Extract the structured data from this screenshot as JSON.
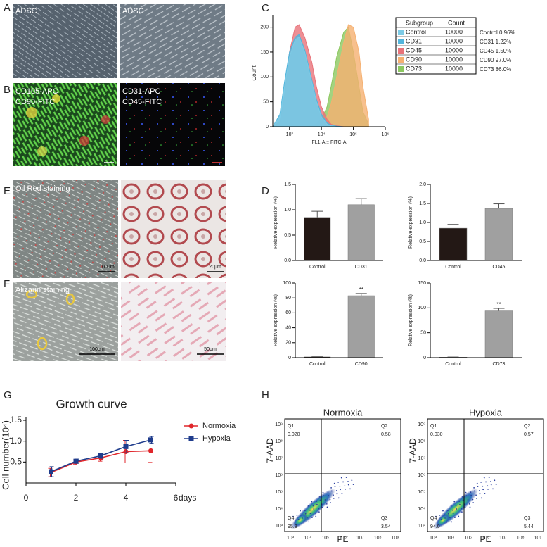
{
  "panel_labels": [
    "A",
    "B",
    "C",
    "D",
    "E",
    "F",
    "G",
    "H"
  ],
  "photos": [
    {
      "labels": [
        "ADSC"
      ]
    },
    {
      "labels": [
        "ADSC"
      ]
    },
    {
      "labels": [
        "CD105-APC",
        "CD90-FITC"
      ]
    },
    {
      "labels": [
        "CD31-APC",
        "CD45-FITC"
      ]
    },
    {
      "labels": [
        "Oil Red staining"
      ],
      "scale": "100μm"
    },
    {
      "scale": "20μm"
    },
    {
      "labels": [
        "Alizarin staining"
      ],
      "scale": "100μm"
    },
    {
      "scale": "50μm"
    }
  ],
  "chart_data": [
    {
      "type": "area",
      "xlabel": "FL1-A :: FITC-A",
      "ylabel": "Count",
      "table_headers": [
        "Subgroup",
        "Count"
      ],
      "log_x": true,
      "x": [
        300,
        500,
        700,
        1000,
        1500,
        2000,
        3000,
        5000,
        7000,
        10000,
        15000,
        20000,
        30000,
        50000,
        70000,
        100000,
        150000,
        200000,
        300000
      ],
      "xlim": [
        300,
        1000000
      ],
      "xticks": [
        {
          "value": 1000,
          "label": "10³"
        },
        {
          "value": 10000,
          "label": "10⁴"
        },
        {
          "value": 100000,
          "label": "10⁵"
        },
        {
          "value": 1000000,
          "label": "10⁶"
        }
      ],
      "ylim": [
        0,
        215
      ],
      "yticks": [
        0,
        50,
        100,
        150,
        200
      ],
      "series": [
        {
          "name": "Control",
          "color": "#7dcbe6",
          "count": 10000,
          "note": "Control 0.96%",
          "values": [
            0,
            20,
            80,
            140,
            175,
            180,
            150,
            90,
            50,
            20,
            5,
            2,
            0,
            0,
            0,
            0,
            0,
            0,
            0
          ]
        },
        {
          "name": "CD31",
          "color": "#52b5dc",
          "count": 10000,
          "note": "CD31 1.22%",
          "values": [
            0,
            25,
            90,
            150,
            180,
            185,
            155,
            95,
            55,
            25,
            8,
            3,
            1,
            0,
            0,
            0,
            0,
            0,
            0
          ]
        },
        {
          "name": "CD45",
          "color": "#e8737a",
          "count": 10000,
          "note": "CD45 1.50%",
          "values": [
            0,
            10,
            60,
            150,
            200,
            205,
            180,
            130,
            80,
            40,
            15,
            5,
            2,
            0,
            0,
            0,
            0,
            0,
            0
          ]
        },
        {
          "name": "CD90",
          "color": "#f5b071",
          "count": 10000,
          "note": "CD90 97.0%",
          "values": [
            0,
            0,
            0,
            0,
            0,
            0,
            0,
            1,
            3,
            8,
            20,
            45,
            100,
            170,
            205,
            200,
            150,
            80,
            15
          ]
        },
        {
          "name": "CD73",
          "color": "#8cc860",
          "count": 10000,
          "note": "CD73 86.0%",
          "values": [
            0,
            0,
            0,
            0,
            0,
            0,
            0,
            2,
            5,
            15,
            40,
            80,
            140,
            190,
            200,
            150,
            80,
            30,
            5
          ]
        }
      ]
    },
    {
      "type": "bar",
      "ylabel": "Relative expression (%)",
      "categories": [
        "Control",
        "CD31"
      ],
      "values": [
        0.85,
        1.1
      ],
      "errors": [
        0.12,
        0.12
      ],
      "colors": [
        "#231815",
        "#a0a0a0"
      ],
      "ylim": [
        0,
        1.5
      ],
      "yticks": [
        {
          "value": 0,
          "label": "0.0"
        },
        0.5,
        {
          "value": 1,
          "label": "1.0"
        },
        1.5
      ]
    },
    {
      "type": "bar",
      "ylabel": "Relative expression (%)",
      "categories": [
        "Control",
        "CD45"
      ],
      "values": [
        0.85,
        1.37
      ],
      "errors": [
        0.1,
        0.12
      ],
      "colors": [
        "#231815",
        "#a0a0a0"
      ],
      "ylim": [
        0,
        2
      ],
      "yticks": [
        {
          "value": 0,
          "label": "0.0"
        },
        0.5,
        {
          "value": 1,
          "label": "1.0"
        },
        1.5,
        {
          "value": 2,
          "label": "2.0"
        }
      ]
    },
    {
      "type": "bar",
      "ylabel": "Relative expression (%)",
      "categories": [
        "Control",
        "CD90"
      ],
      "values": [
        1,
        83
      ],
      "errors": [
        0.3,
        3
      ],
      "colors": [
        "#231815",
        "#a0a0a0"
      ],
      "value_annotations": [
        null,
        "**"
      ],
      "ylim": [
        0,
        100
      ],
      "yticks": [
        0,
        20,
        40,
        60,
        80,
        100
      ]
    },
    {
      "type": "bar",
      "ylabel": "Relative expression (%)",
      "categories": [
        "Control",
        "CD73"
      ],
      "values": [
        1,
        94
      ],
      "errors": [
        0.3,
        5
      ],
      "colors": [
        "#231815",
        "#a0a0a0"
      ],
      "value_annotations": [
        null,
        "**"
      ],
      "ylim": [
        0,
        150
      ],
      "yticks": [
        0,
        50,
        100,
        150
      ]
    },
    {
      "type": "line",
      "title": "Growth curve",
      "xlabel": "days",
      "ylabel": "Cell number(10⁴)",
      "legend": "upper right",
      "x": [
        1,
        2,
        3,
        4,
        5
      ],
      "xlim": [
        0,
        6
      ],
      "xticks": [
        0,
        2,
        4,
        6
      ],
      "ylim": [
        0,
        1.5
      ],
      "yticks": [
        0.5,
        {
          "value": 1,
          "label": "1.0"
        },
        1.5
      ],
      "series": [
        {
          "name": "Normoxia",
          "color": "#e0262b",
          "marker": "circle",
          "values": [
            0.25,
            0.5,
            0.6,
            0.75,
            0.77
          ],
          "errors": [
            0.1,
            0.05,
            0.08,
            0.27,
            0.28
          ]
        },
        {
          "name": "Hypoxia",
          "color": "#1f3c8c",
          "marker": "square",
          "values": [
            0.27,
            0.52,
            0.65,
            0.87,
            1.03
          ],
          "errors": [
            0.12,
            0.05,
            0.06,
            0.15,
            0.08
          ]
        }
      ]
    }
  ],
  "flow_plots": {
    "xlabel": "PE",
    "ylabel": "7-AAD",
    "axis_ticks": [
      "10³",
      "10⁴",
      "10⁵",
      "10⁶",
      "10⁷",
      "10⁸",
      "10⁹"
    ],
    "panels": [
      {
        "title": "Normoxia",
        "quadrants": [
          {
            "name": "Q1",
            "value": "0.020"
          },
          {
            "name": "Q2",
            "value": "0.58"
          },
          {
            "name": "Q3",
            "value": "3.54"
          },
          {
            "name": "Q4",
            "value": "95.9"
          }
        ]
      },
      {
        "title": "Hypoxia",
        "quadrants": [
          {
            "name": "Q1",
            "value": "0.030"
          },
          {
            "name": "Q2",
            "value": "0.57"
          },
          {
            "name": "Q3",
            "value": "5.44"
          },
          {
            "name": "Q4",
            "value": "94.0"
          }
        ]
      }
    ]
  }
}
